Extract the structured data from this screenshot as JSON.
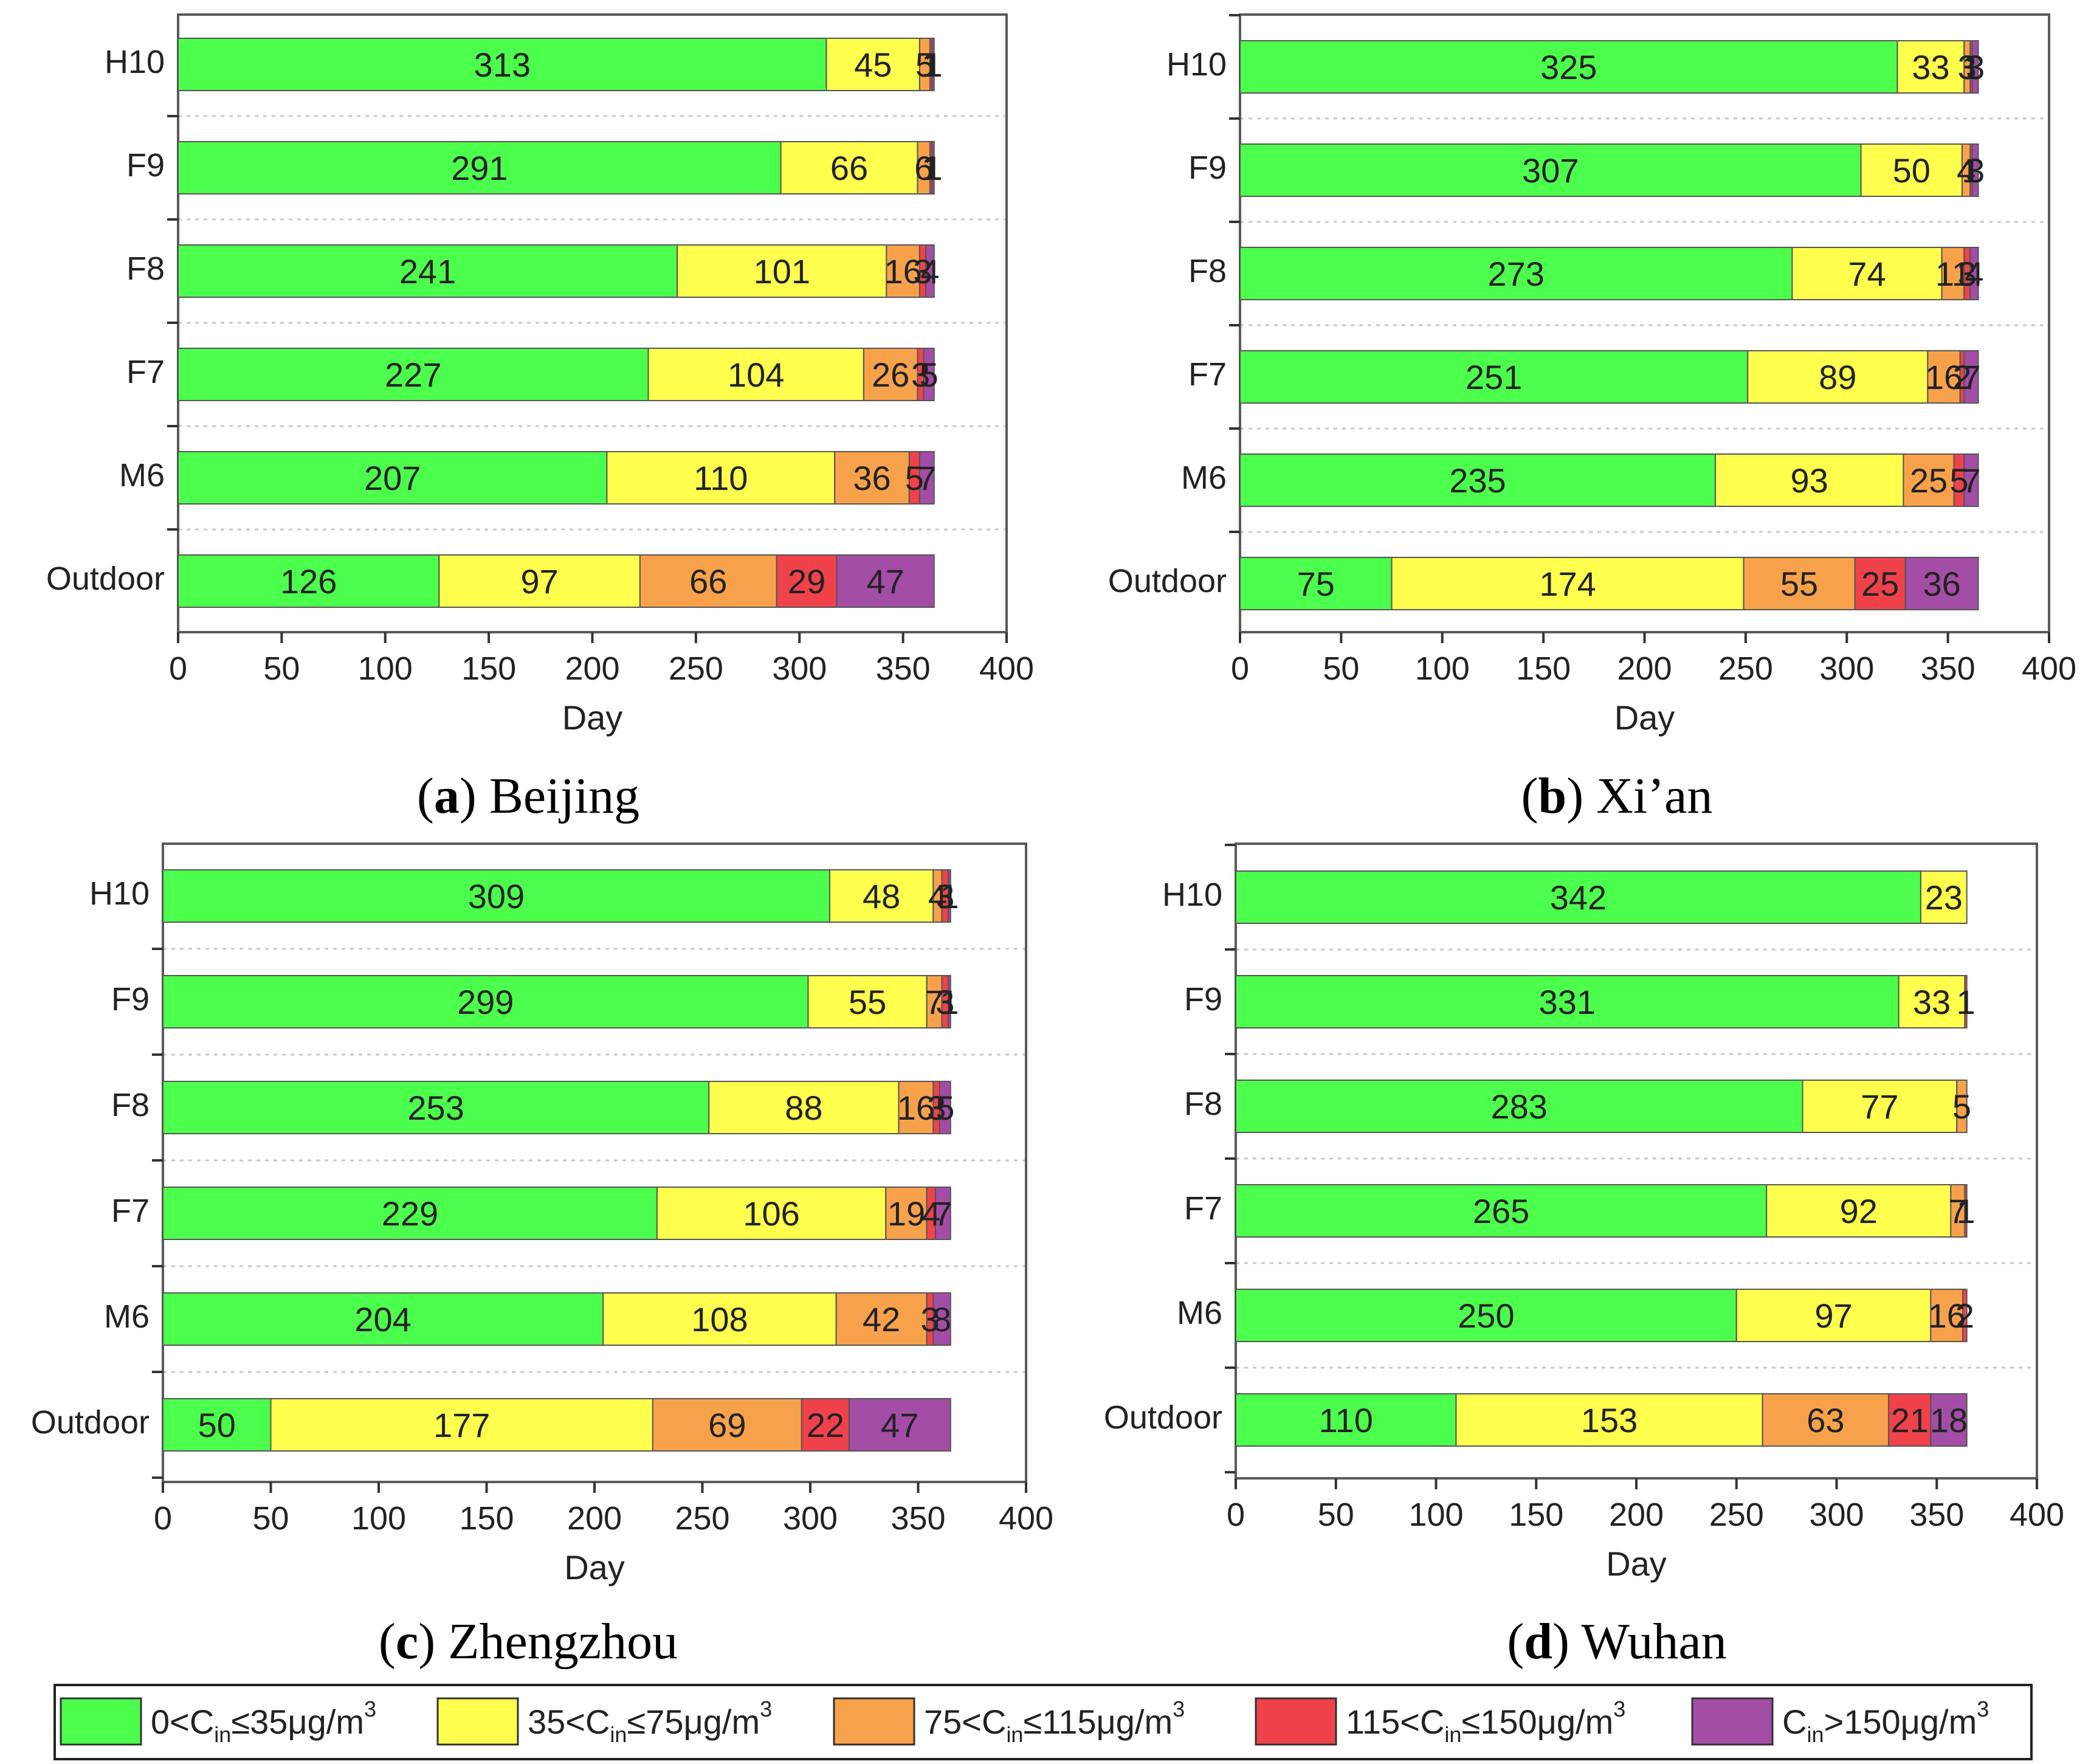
{
  "colors": {
    "band1": "#4dff4d",
    "band2": "#ffff4d",
    "band3": "#f7a24b",
    "band4": "#f0424b",
    "band5": "#a34da6",
    "frame": "#5a5a5a",
    "grid": "#c8c8c8"
  },
  "legend": [
    {
      "pre": "0<C",
      "sub": "in",
      "post": "≤35μg/m",
      "sup": "3"
    },
    {
      "pre": "35<C",
      "sub": "in",
      "post": "≤75μg/m",
      "sup": "3"
    },
    {
      "pre": "75<C",
      "sub": "in",
      "post": "≤115μg/m",
      "sup": "3"
    },
    {
      "pre": "115<C",
      "sub": "in",
      "post": "≤150μg/m",
      "sup": "3"
    },
    {
      "pre": "C",
      "sub": "in",
      "post": ">150μg/m",
      "sup": "3"
    }
  ],
  "chart_data": [
    {
      "type": "bar",
      "orientation": "horizontal",
      "stacked": true,
      "caption_letter": "a",
      "caption_city": "Beijing",
      "xlabel": "Day",
      "xlim": [
        0,
        400
      ],
      "xticks": [
        0,
        50,
        100,
        150,
        200,
        250,
        300,
        350,
        400
      ],
      "categories": [
        "H10",
        "F9",
        "F8",
        "F7",
        "M6",
        "Outdoor"
      ],
      "series": [
        {
          "name": "0<Cin≤35μg/m3",
          "values": [
            313,
            291,
            241,
            227,
            207,
            126
          ]
        },
        {
          "name": "35<Cin≤75μg/m3",
          "values": [
            45,
            66,
            101,
            104,
            110,
            97
          ]
        },
        {
          "name": "75<Cin≤115μg/m3",
          "values": [
            5,
            6,
            16,
            26,
            36,
            66
          ]
        },
        {
          "name": "115<Cin≤150μg/m3",
          "values": [
            1,
            1,
            3,
            3,
            5,
            29
          ]
        },
        {
          "name": "Cin>150μg/m3",
          "values": [
            1,
            1,
            4,
            5,
            7,
            47
          ]
        }
      ]
    },
    {
      "type": "bar",
      "orientation": "horizontal",
      "stacked": true,
      "caption_letter": "b",
      "caption_city": "Xi’an",
      "xlabel": "Day",
      "xlim": [
        0,
        400
      ],
      "xticks": [
        0,
        50,
        100,
        150,
        200,
        250,
        300,
        350,
        400
      ],
      "categories": [
        "H10",
        "F9",
        "F8",
        "F7",
        "M6",
        "Outdoor"
      ],
      "series": [
        {
          "name": "0<Cin≤35μg/m3",
          "values": [
            325,
            307,
            273,
            251,
            235,
            75
          ]
        },
        {
          "name": "35<Cin≤75μg/m3",
          "values": [
            33,
            50,
            74,
            89,
            93,
            174
          ]
        },
        {
          "name": "75<Cin≤115μg/m3",
          "values": [
            3,
            4,
            11,
            16,
            25,
            55
          ]
        },
        {
          "name": "115<Cin≤150μg/m3",
          "values": [
            1,
            1,
            3,
            2,
            5,
            25
          ]
        },
        {
          "name": "Cin>150μg/m3",
          "values": [
            3,
            3,
            4,
            7,
            7,
            36
          ]
        }
      ]
    },
    {
      "type": "bar",
      "orientation": "horizontal",
      "stacked": true,
      "caption_letter": "c",
      "caption_city": "Zhengzhou",
      "xlabel": "Day",
      "xlim": [
        0,
        400
      ],
      "xticks": [
        0,
        50,
        100,
        150,
        200,
        250,
        300,
        350,
        400
      ],
      "categories": [
        "H10",
        "F9",
        "F8",
        "F7",
        "M6",
        "Outdoor"
      ],
      "series": [
        {
          "name": "0<Cin≤35μg/m3",
          "values": [
            309,
            299,
            253,
            229,
            204,
            50
          ]
        },
        {
          "name": "35<Cin≤75μg/m3",
          "values": [
            48,
            55,
            88,
            106,
            108,
            177
          ]
        },
        {
          "name": "75<Cin≤115μg/m3",
          "values": [
            4,
            7,
            16,
            19,
            42,
            69
          ]
        },
        {
          "name": "115<Cin≤150μg/m3",
          "values": [
            3,
            3,
            3,
            4,
            3,
            22
          ]
        },
        {
          "name": "Cin>150μg/m3",
          "values": [
            1,
            1,
            5,
            7,
            8,
            47
          ]
        }
      ]
    },
    {
      "type": "bar",
      "orientation": "horizontal",
      "stacked": true,
      "caption_letter": "d",
      "caption_city": "Wuhan",
      "xlabel": "Day",
      "xlim": [
        0,
        400
      ],
      "xticks": [
        0,
        50,
        100,
        150,
        200,
        250,
        300,
        350,
        400
      ],
      "categories": [
        "H10",
        "F9",
        "F8",
        "F7",
        "M6",
        "Outdoor"
      ],
      "series": [
        {
          "name": "0<Cin≤35μg/m3",
          "values": [
            342,
            331,
            283,
            265,
            250,
            110
          ]
        },
        {
          "name": "35<Cin≤75μg/m3",
          "values": [
            23,
            33,
            77,
            92,
            97,
            153
          ]
        },
        {
          "name": "75<Cin≤115μg/m3",
          "values": [
            0,
            0,
            5,
            7,
            16,
            63
          ]
        },
        {
          "name": "115<Cin≤150μg/m3",
          "values": [
            0,
            1,
            0,
            1,
            2,
            21
          ]
        },
        {
          "name": "Cin>150μg/m3",
          "values": [
            0,
            0,
            0,
            0,
            0,
            18
          ]
        }
      ]
    }
  ]
}
